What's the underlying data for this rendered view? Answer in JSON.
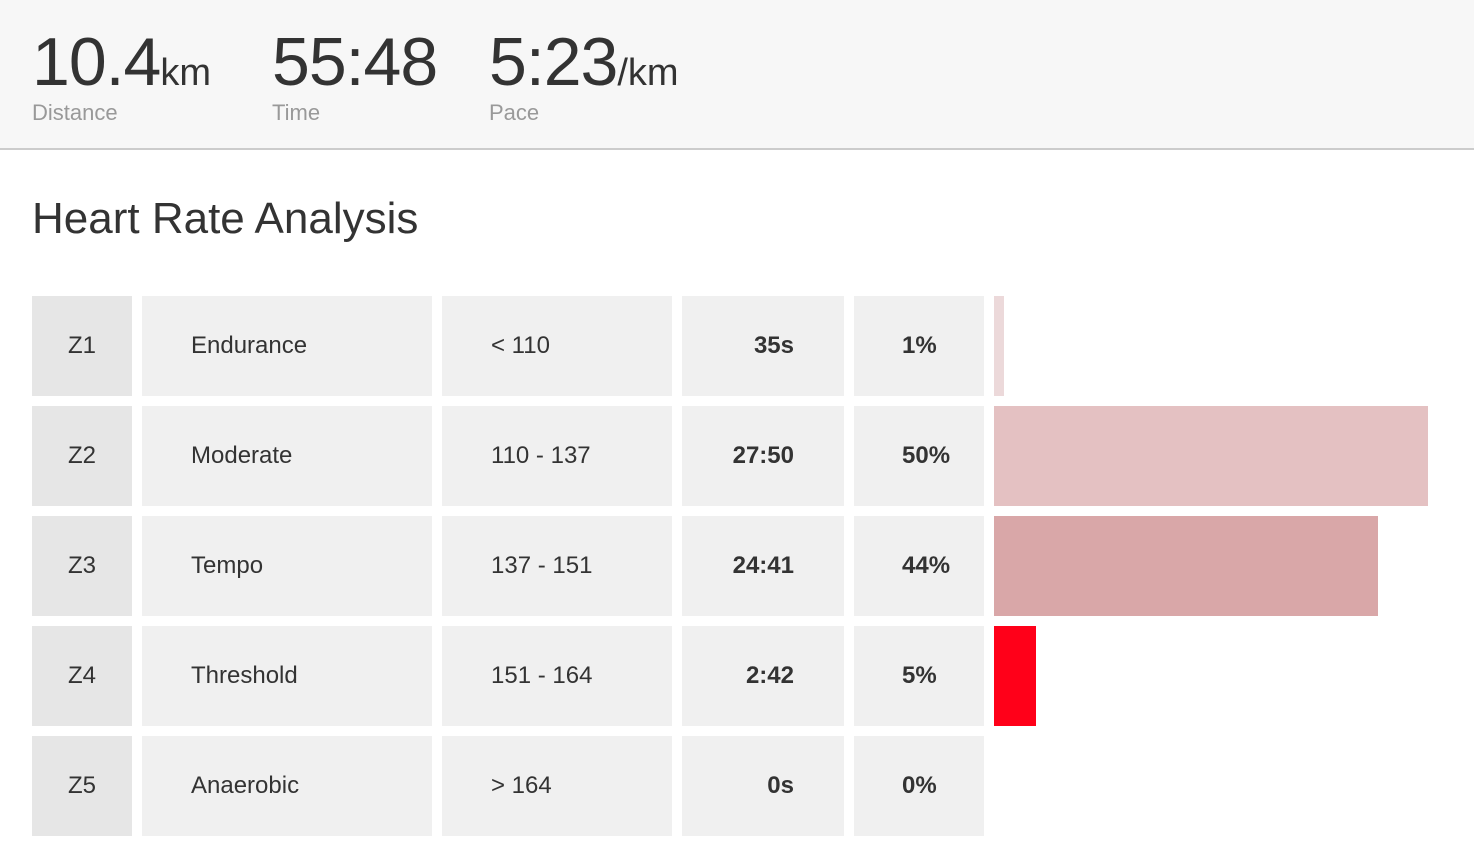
{
  "summary": {
    "distance": {
      "value": "10.4",
      "unit": "km",
      "label": "Distance"
    },
    "time": {
      "value": "55:48",
      "unit": "",
      "label": "Time"
    },
    "pace": {
      "value": "5:23",
      "unit": "/km",
      "label": "Pace"
    }
  },
  "heart_rate": {
    "title": "Heart Rate Analysis",
    "zones": [
      {
        "id": "Z1",
        "name": "Endurance",
        "range": "< 110",
        "time": "35s",
        "percent": "1%",
        "bar_fraction": 0.023,
        "bar_color": "#ecd9da"
      },
      {
        "id": "Z2",
        "name": "Moderate",
        "range": "110 - 137",
        "time": "27:50",
        "percent": "50%",
        "bar_fraction": 1.0,
        "bar_color": "#e4c1c2"
      },
      {
        "id": "Z3",
        "name": "Tempo",
        "range": "137 - 151",
        "time": "24:41",
        "percent": "44%",
        "bar_fraction": 0.885,
        "bar_color": "#d9a7a8"
      },
      {
        "id": "Z4",
        "name": "Threshold",
        "range": "151 - 164",
        "time": "2:42",
        "percent": "5%",
        "bar_fraction": 0.097,
        "bar_color": "#ff0019"
      },
      {
        "id": "Z5",
        "name": "Anaerobic",
        "range": "> 164",
        "time": "0s",
        "percent": "0%",
        "bar_fraction": 0.0,
        "bar_color": "#ff0019"
      }
    ]
  }
}
